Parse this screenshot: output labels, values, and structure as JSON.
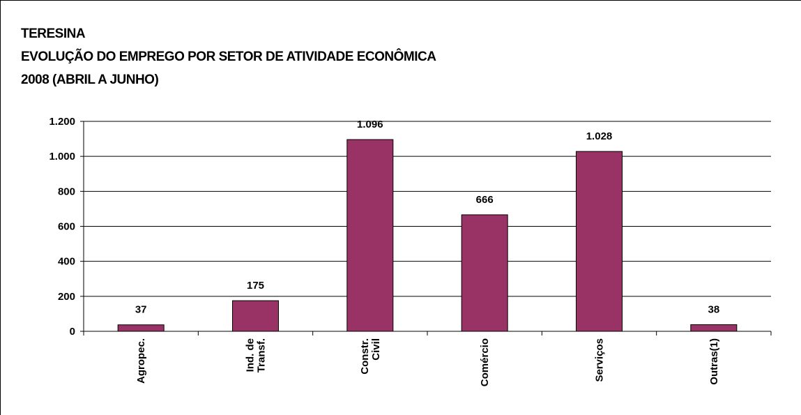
{
  "chart_data": {
    "type": "bar",
    "title": [
      "TERESINA",
      "EVOLUÇÃO DO EMPREGO POR SETOR DE ATIVIDADE ECONÔMICA",
      "2008 (ABRIL A JUNHO)"
    ],
    "categories": [
      "Agropec.",
      "Ind. de Transf.",
      "Constr. Civil",
      "Comércio",
      "Serviços",
      "Outras(1)"
    ],
    "values": [
      37,
      175,
      1096,
      666,
      1028,
      38
    ],
    "value_labels": [
      "37",
      "175",
      "1.096",
      "666",
      "1.028",
      "38"
    ],
    "color": "#993366",
    "ylim": [
      0,
      1200
    ],
    "yticks": [
      0,
      200,
      400,
      600,
      800,
      {
        "value": 1000,
        "label": "1.000"
      },
      {
        "value": 1200,
        "label": "1.200"
      }
    ],
    "grid": true
  }
}
